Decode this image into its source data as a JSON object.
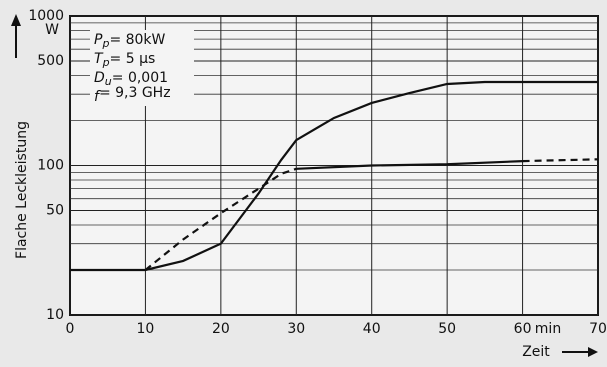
{
  "chart_data": {
    "type": "line",
    "log_y": true,
    "grid": true,
    "y_unit": "W",
    "x_unit": "min",
    "xlabel": "Zeit",
    "ylabel": "Flache Leckleistung",
    "xlim": [
      0,
      70
    ],
    "xticks": [
      0,
      10,
      20,
      30,
      40,
      50,
      60,
      70
    ],
    "ylim": [
      10,
      1000
    ],
    "yticks": [
      10,
      50,
      100,
      500,
      1000
    ],
    "yminor": [
      20,
      30,
      40,
      60,
      70,
      80,
      90,
      200,
      300,
      400,
      600,
      700,
      800,
      900
    ],
    "annotations": [
      {
        "main": "P",
        "sub": "p",
        "rest": "= 80kW"
      },
      {
        "main": "T",
        "sub": "p",
        "rest": "= 5 µs"
      },
      {
        "main": "D",
        "sub": "u",
        "rest": "= 0,001"
      },
      {
        "main": "f",
        "sub": "",
        "rest": "= 9,3 GHz"
      }
    ],
    "series": [
      {
        "color": "#111",
        "dashed": false,
        "x": [
          0,
          10,
          15,
          20,
          25,
          28,
          30,
          35,
          40,
          45,
          50,
          55,
          60,
          70
        ],
        "values": [
          20,
          20,
          23,
          30,
          65,
          109,
          148,
          208,
          262,
          305,
          351,
          362,
          362,
          362
        ]
      },
      {
        "color": "#111",
        "dashed": true,
        "x": [
          10,
          15,
          20,
          25,
          28,
          30
        ],
        "values": [
          20,
          32,
          48,
          70,
          88,
          95
        ]
      },
      {
        "color": "#111",
        "dashed": false,
        "x": [
          30,
          40,
          50,
          60
        ],
        "values": [
          95,
          100,
          102,
          107
        ]
      },
      {
        "color": "#111",
        "dashed": true,
        "x": [
          60,
          70
        ],
        "values": [
          107,
          110
        ]
      }
    ]
  }
}
